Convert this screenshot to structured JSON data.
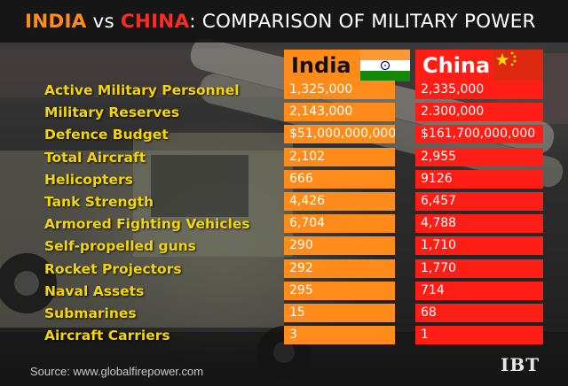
{
  "title": {
    "part1": "INDIA",
    "part2": " vs ",
    "part3": "CHINA",
    "part4": ": COMPARISON OF MILITARY POWER"
  },
  "columns": {
    "india": "India",
    "china": "China"
  },
  "rows": [
    {
      "label": "Active Military Personnel",
      "india": "1,325,000",
      "china": "2,335,000"
    },
    {
      "label": "Military Reserves",
      "india": "2,143,000",
      "china": "2.300,000"
    },
    {
      "label": "Defence Budget",
      "india": "$51,000,000,000",
      "china": "$161,700,000,000"
    },
    {
      "label": "Total Aircraft",
      "india": "2,102",
      "china": "2,955"
    },
    {
      "label": "Helicopters",
      "india": "666",
      "china": "9126"
    },
    {
      "label": "Tank Strength",
      "india": "4,426",
      "china": "6,457"
    },
    {
      "label": "Armored Fighting Vehicles",
      "india": "6,704",
      "china": "4,788"
    },
    {
      "label": "Self-propelled guns",
      "india": "290",
      "china": "1,710"
    },
    {
      "label": "Rocket Projectors",
      "india": "292",
      "china": "1,770"
    },
    {
      "label": "Naval Assets",
      "india": "295",
      "china": "714"
    },
    {
      "label": "Submarines",
      "india": "15",
      "china": "68"
    },
    {
      "label": "Aircraft Carriers",
      "india": "3",
      "china": "1"
    }
  ],
  "source": "Source: www.globalfirepower.com",
  "logo": "IBT",
  "colors": {
    "india": "#ff8c1a",
    "china": "#ff1e16",
    "label": "#f5d600"
  }
}
